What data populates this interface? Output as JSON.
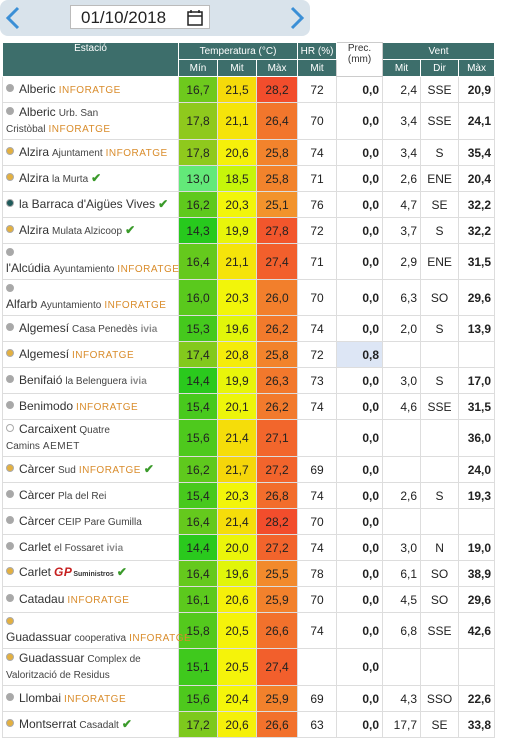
{
  "date": "01/10/2018",
  "table": {
    "groups": [
      "Estació",
      "Temperatura (°C)",
      "HR (%)",
      "Prec. (mm)",
      "Vent"
    ],
    "subheaders": [
      "Mín",
      "Mit",
      "Màx",
      "Mit",
      "Mit",
      "Dir",
      "Màx"
    ],
    "rows": [
      {
        "station": "Alberic",
        "tag": "INFORATGE",
        "dot": "#a8a8a8",
        "cells": [
          "16,7",
          "21,5",
          "28,2",
          "72",
          "0,0",
          "2,4",
          "SSE",
          "20,9"
        ]
      },
      {
        "station": "Alberic",
        "detail": "Urb. San Cristòbal",
        "tag": "INFORATGE",
        "dot": "#a8a8a8",
        "cells": [
          "17,8",
          "21,1",
          "26,4",
          "70",
          "0,0",
          "3,4",
          "SSE",
          "24,1"
        ]
      },
      {
        "station": "Alzira",
        "detail": "Ajuntament",
        "tag": "INFORATGE",
        "dot": "#e3b040",
        "cells": [
          "17,8",
          "20,6",
          "25,8",
          "74",
          "0,0",
          "3,4",
          "S",
          "35,4"
        ]
      },
      {
        "station": "Alzira",
        "detail": "la Murta",
        "check": true,
        "dot": "#e3b040",
        "cells": [
          "13,0",
          "18,5",
          "25,8",
          "71",
          "0,0",
          "2,6",
          "ENE",
          "20,4"
        ]
      },
      {
        "station": "la Barraca d'Aigües Vives",
        "check": true,
        "dot": "#1f5a5a",
        "cells": [
          "16,2",
          "20,3",
          "25,1",
          "76",
          "0,0",
          "4,7",
          "SE",
          "32,2"
        ]
      },
      {
        "station": "Alzira",
        "detail": "Mulata Alzicoop",
        "check": true,
        "dot": "#e3b040",
        "cells": [
          "14,3",
          "19,9",
          "27,8",
          "72",
          "0,0",
          "3,7",
          "S",
          "32,2"
        ]
      },
      {
        "station": "l'Alcúdia",
        "detail": "Ayuntamiento",
        "tag": "INFORATGE",
        "dot": "#a8a8a8",
        "cells": [
          "16,4",
          "21,1",
          "27,4",
          "71",
          "0,0",
          "2,9",
          "ENE",
          "31,5"
        ]
      },
      {
        "station": "Alfarb",
        "detail": "Ayuntamiento",
        "tag": "INFORATGE",
        "dot": "#a8a8a8",
        "cells": [
          "16,0",
          "20,3",
          "26,0",
          "70",
          "0,0",
          "6,3",
          "SO",
          "29,6"
        ]
      },
      {
        "station": "Algemesí",
        "detail": "Casa Penedès",
        "tag": "ivia",
        "dot": "#a8a8a8",
        "cells": [
          "15,3",
          "19,6",
          "26,2",
          "74",
          "0,0",
          "2,0",
          "S",
          "13,9"
        ]
      },
      {
        "station": "Algemesí",
        "tag": "INFORATGE",
        "dot": "#e3b040",
        "cells": [
          "17,4",
          "20,8",
          "25,8",
          "72",
          "0,8",
          null,
          null,
          null
        ]
      },
      {
        "station": "Benifaió",
        "detail": "la Belenguera",
        "tag": "ivia",
        "dot": "#a8a8a8",
        "cells": [
          "14,4",
          "19,9",
          "26,3",
          "73",
          "0,0",
          "3,0",
          "S",
          "17,0"
        ]
      },
      {
        "station": "Benimodo",
        "tag": "INFORATGE",
        "dot": "#a8a8a8",
        "cells": [
          "15,4",
          "20,1",
          "26,2",
          "74",
          "0,0",
          "4,6",
          "SSE",
          "31,5"
        ]
      },
      {
        "station": "Carcaixent",
        "detail": "Quatre Camins",
        "tag": "AEMET",
        "dot": "#ffffff",
        "cells": [
          "15,6",
          "21,4",
          "27,1",
          null,
          "0,0",
          null,
          null,
          "36,0"
        ]
      },
      {
        "station": "Càrcer",
        "detail": "Sud",
        "tag": "INFORATGE",
        "check": true,
        "dot": "#e3b040",
        "cells": [
          "16,2",
          "21,7",
          "27,2",
          "69",
          "0,0",
          null,
          null,
          "24,0"
        ]
      },
      {
        "station": "Càrcer",
        "detail": "Pla del Rei",
        "dot": "#a8a8a8",
        "cells": [
          "15,4",
          "20,3",
          "26,8",
          "74",
          "0,0",
          "2,6",
          "S",
          "19,3"
        ]
      },
      {
        "station": "Càrcer",
        "detail": "CEIP Pare Gumilla",
        "dot": "#a8a8a8",
        "cells": [
          "16,4",
          "21,4",
          "28,2",
          "70",
          "0,0",
          null,
          null,
          null
        ]
      },
      {
        "station": "Carlet",
        "detail": "el Fossaret",
        "tag": "ivia",
        "dot": "#a8a8a8",
        "cells": [
          "14,4",
          "20,0",
          "27,2",
          "74",
          "0,0",
          "3,0",
          "N",
          "19,0"
        ]
      },
      {
        "station": "Carlet",
        "tag": "GP",
        "tag2": "Suministros",
        "check": true,
        "dot": "#e3b040",
        "cells": [
          "16,4",
          "19,6",
          "25,5",
          "78",
          "0,0",
          "6,1",
          "SO",
          "38,9"
        ]
      },
      {
        "station": "Catadau",
        "tag": "INFORATGE",
        "dot": "#a8a8a8",
        "cells": [
          "16,1",
          "20,6",
          "25,9",
          "70",
          "0,0",
          "4,5",
          "SO",
          "29,6"
        ]
      },
      {
        "station": "Guadassuar",
        "detail": "cooperativa",
        "tag": "INFORATGE",
        "dot": "#e3b040",
        "cells": [
          "15,8",
          "20,5",
          "26,6",
          "74",
          "0,0",
          "6,8",
          "SSE",
          "42,6"
        ]
      },
      {
        "station": "Guadassuar",
        "detail": "Complex de Valorització de Residus",
        "dot": "#e3b040",
        "cells": [
          "15,1",
          "20,5",
          "27,4",
          null,
          "0,0",
          null,
          null,
          null
        ]
      },
      {
        "station": "Llombai",
        "tag": "INFORATGE",
        "dot": "#a8a8a8",
        "cells": [
          "15,6",
          "20,4",
          "25,9",
          "69",
          "0,0",
          "4,3",
          "SSO",
          "22,6"
        ]
      },
      {
        "station": "Montserrat",
        "detail": "Casadalt",
        "check": true,
        "dot": "#e3b040",
        "cells": [
          "17,2",
          "20,6",
          "26,6",
          "63",
          "0,0",
          "17,7",
          "SE",
          "33,8"
        ]
      }
    ]
  }
}
